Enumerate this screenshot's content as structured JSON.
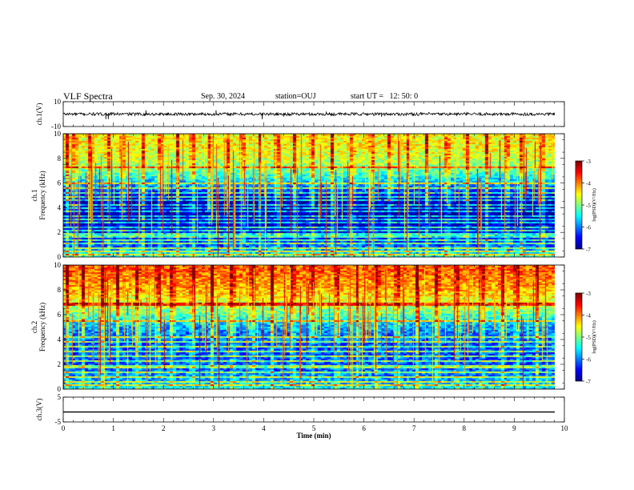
{
  "header": {
    "title": "VLF Spectra",
    "date": "Sep. 30, 2024",
    "station": "station=OUJ",
    "start": "start UT =   12: 50: 0"
  },
  "chart_data": [
    {
      "type": "line",
      "name": "ch1-waveform",
      "ylabel": "ch.1(V)",
      "ylim": [
        -10,
        10
      ],
      "yticks": [
        "10",
        "-10"
      ],
      "xlim": [
        0,
        10
      ],
      "baseline": 0,
      "noise_amplitude": 1.2,
      "spikes": [
        {
          "t": 0.85,
          "v": -4
        },
        {
          "t": 0.9,
          "v": -4
        },
        {
          "t": 1.65,
          "v": 3
        },
        {
          "t": 3.05,
          "v": 3
        },
        {
          "t": 3.97,
          "v": -4
        },
        {
          "t": 4.4,
          "v": -2
        },
        {
          "t": 5.25,
          "v": 2
        },
        {
          "t": 6.35,
          "v": -2
        }
      ]
    },
    {
      "type": "heatmap",
      "name": "ch1-spectrogram",
      "ylabel": "ch.1\nFrequency (kHz)",
      "ylim": [
        0,
        10
      ],
      "yticks": [
        "0",
        "2",
        "4",
        "6",
        "8",
        "10"
      ],
      "xlim": [
        0,
        9.85
      ],
      "colorbar": {
        "label": "log(PSD)(V²/Hz)",
        "range": [
          -7,
          -3
        ],
        "ticks": [
          "-3",
          "-4",
          "-5",
          "-6",
          "-7"
        ]
      },
      "profile_log_psd": [
        {
          "f": 0,
          "v": -5.4
        },
        {
          "f": 0.5,
          "v": -5.9
        },
        {
          "f": 1.0,
          "v": -6.2
        },
        {
          "f": 1.5,
          "v": -6.4
        },
        {
          "f": 2.0,
          "v": -6.6
        },
        {
          "f": 2.5,
          "v": -6.7
        },
        {
          "f": 3.0,
          "v": -6.8
        },
        {
          "f": 3.5,
          "v": -6.9
        },
        {
          "f": 4.0,
          "v": -6.9
        },
        {
          "f": 4.5,
          "v": -6.8
        },
        {
          "f": 5.0,
          "v": -6.6
        },
        {
          "f": 5.5,
          "v": -6.2
        },
        {
          "f": 6.0,
          "v": -5.8
        },
        {
          "f": 6.5,
          "v": -5.4
        },
        {
          "f": 7.0,
          "v": -5.1
        },
        {
          "f": 7.5,
          "v": -4.9
        },
        {
          "f": 8.0,
          "v": -4.7
        },
        {
          "f": 8.5,
          "v": -4.6
        },
        {
          "f": 9.0,
          "v": -4.5
        },
        {
          "f": 9.5,
          "v": -4.5
        },
        {
          "f": 10.0,
          "v": -4.5
        }
      ],
      "tones_khz": [
        0.15,
        0.45,
        0.75,
        1.05,
        1.3,
        1.55,
        1.8,
        2.1,
        2.4,
        2.7,
        3.0,
        3.3,
        3.6,
        3.9,
        4.2,
        4.5,
        4.8,
        5.2,
        5.6,
        6.0,
        7.2
      ],
      "bursts_min": [
        0.1,
        0.25,
        0.55,
        0.9,
        1.2,
        1.6,
        1.95,
        2.3,
        2.6,
        2.95,
        3.3,
        3.6,
        3.95,
        4.3,
        4.65,
        5.0,
        5.4,
        5.8,
        6.2,
        6.55,
        6.9,
        7.3,
        7.7,
        8.1,
        8.5,
        8.9,
        9.2,
        9.6
      ]
    },
    {
      "type": "heatmap",
      "name": "ch2-spectrogram",
      "ylabel": "ch.2\nFrequency (kHz)",
      "ylim": [
        0,
        10
      ],
      "yticks": [
        "0",
        "2",
        "4",
        "6",
        "8",
        "10"
      ],
      "xlim": [
        0,
        9.85
      ],
      "colorbar": {
        "label": "log(PSD)(V²/Hz)",
        "range": [
          -7,
          -3
        ],
        "ticks": [
          "-3",
          "-4",
          "-5",
          "-6",
          "-7"
        ]
      },
      "profile_log_psd": [
        {
          "f": 0,
          "v": -5.5
        },
        {
          "f": 0.5,
          "v": -5.8
        },
        {
          "f": 1.0,
          "v": -6.0
        },
        {
          "f": 1.5,
          "v": -6.1
        },
        {
          "f": 2.0,
          "v": -6.2
        },
        {
          "f": 2.5,
          "v": -6.2
        },
        {
          "f": 3.0,
          "v": -6.2
        },
        {
          "f": 3.5,
          "v": -6.2
        },
        {
          "f": 4.0,
          "v": -6.1
        },
        {
          "f": 4.5,
          "v": -6.0
        },
        {
          "f": 5.0,
          "v": -5.8
        },
        {
          "f": 5.5,
          "v": -5.5
        },
        {
          "f": 6.0,
          "v": -5.2
        },
        {
          "f": 6.5,
          "v": -4.9
        },
        {
          "f": 7.0,
          "v": -4.6
        },
        {
          "f": 7.5,
          "v": -4.4
        },
        {
          "f": 8.0,
          "v": -4.2
        },
        {
          "f": 8.5,
          "v": -4.1
        },
        {
          "f": 9.0,
          "v": -4.0
        },
        {
          "f": 9.5,
          "v": -3.9
        },
        {
          "f": 10.0,
          "v": -3.9
        }
      ],
      "tones_khz": [
        0.3,
        0.6,
        1.0,
        1.4,
        1.8,
        2.2,
        2.6,
        3.0,
        3.4,
        3.8,
        4.2,
        5.5,
        6.8
      ],
      "bursts_min": [
        0.1,
        0.4,
        0.8,
        1.1,
        1.5,
        1.9,
        2.2,
        2.6,
        3.0,
        3.4,
        3.8,
        4.2,
        4.6,
        5.0,
        5.5,
        5.9,
        6.3,
        6.7,
        7.1,
        7.5,
        7.9,
        8.4,
        8.8,
        9.1,
        9.5
      ]
    },
    {
      "type": "line",
      "name": "ch3-waveform",
      "ylabel": "ch.3(V)",
      "ylim": [
        -5,
        5
      ],
      "yticks": [
        "5",
        "-5"
      ],
      "xlim": [
        0,
        10
      ],
      "baseline": -1,
      "noise_amplitude": 0
    }
  ],
  "x_axis": {
    "label": "Time (min)",
    "ticks": [
      "0",
      "1",
      "2",
      "3",
      "4",
      "5",
      "6",
      "7",
      "8",
      "9",
      "10"
    ]
  },
  "colors": {
    "colormap": [
      "#00008f",
      "#0000ff",
      "#0080ff",
      "#00ffff",
      "#80ff80",
      "#ffff00",
      "#ff8000",
      "#ff0000",
      "#800000"
    ]
  }
}
